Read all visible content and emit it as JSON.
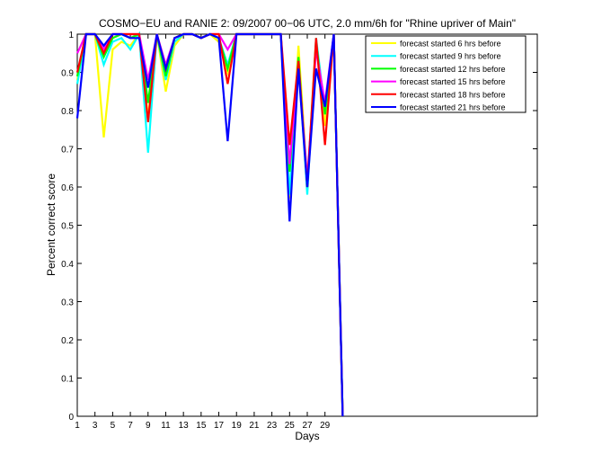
{
  "chart_data": {
    "type": "line",
    "title": "COSMO−EU and RANIE 2: 09/2007 00−06 UTC, 2.0 mm/6h for \"Rhine upriver of Main\"",
    "xlabel": "Days",
    "ylabel": "Percent correct score",
    "xlim": [
      1,
      53
    ],
    "ylim": [
      0,
      1
    ],
    "x_ticks": [
      1,
      3,
      5,
      7,
      9,
      11,
      13,
      15,
      17,
      19,
      21,
      23,
      25,
      27,
      29
    ],
    "y_ticks": [
      0,
      0.1,
      0.2,
      0.3,
      0.4,
      0.5,
      0.6,
      0.7,
      0.8,
      0.9,
      1
    ],
    "x_tick_labels": [
      "1",
      "3",
      "5",
      "7",
      "9",
      "11",
      "13",
      "15",
      "17",
      "19",
      "21",
      "23",
      "25",
      "27",
      "29"
    ],
    "y_tick_labels": [
      "0",
      "0.1",
      "0.2",
      "0.3",
      "0.4",
      "0.5",
      "0.6",
      "0.7",
      "0.8",
      "0.9",
      "1"
    ],
    "grid": false,
    "legend_position": "top-right",
    "x": [
      1,
      2,
      3,
      4,
      5,
      6,
      7,
      8,
      9,
      10,
      11,
      12,
      13,
      14,
      15,
      16,
      17,
      18,
      19,
      20,
      21,
      22,
      23,
      24,
      25,
      26,
      27,
      28,
      29,
      30,
      31
    ],
    "series": [
      {
        "name": "forecast started 6 hrs before",
        "color": "#ffff00",
        "values": [
          0.88,
          1,
          1,
          0.73,
          0.96,
          0.98,
          0.97,
          1,
          0.78,
          1,
          0.85,
          0.97,
          1,
          1,
          0.99,
          1,
          0.98,
          0.9,
          1,
          1,
          1,
          1,
          1,
          1,
          0.57,
          0.97,
          0.61,
          0.99,
          0.76,
          1,
          0
        ]
      },
      {
        "name": "forecast started 9 hrs before",
        "color": "#00ffff",
        "values": [
          0.87,
          1,
          1,
          0.92,
          0.98,
          0.99,
          0.96,
          1,
          0.69,
          1,
          0.88,
          0.98,
          1,
          1,
          0.99,
          1,
          0.99,
          0.92,
          1,
          1,
          1,
          1,
          1,
          1,
          0.58,
          0.93,
          0.58,
          0.99,
          0.8,
          1,
          0
        ]
      },
      {
        "name": "forecast started 12 hrs before",
        "color": "#00ff00",
        "values": [
          0.89,
          1,
          1,
          0.94,
          0.99,
          1,
          0.99,
          1,
          0.82,
          1,
          0.89,
          0.99,
          1,
          1,
          0.99,
          1,
          0.99,
          0.91,
          1,
          1,
          1,
          1,
          1,
          1,
          0.64,
          0.94,
          0.6,
          0.98,
          0.79,
          1,
          0
        ]
      },
      {
        "name": "forecast started 15 hrs before",
        "color": "#ff00ff",
        "values": [
          0.95,
          1,
          1,
          0.96,
          1,
          1,
          1,
          1,
          0.88,
          1,
          0.92,
          0.99,
          1,
          1,
          0.99,
          1,
          1,
          0.96,
          1,
          1,
          1,
          1,
          1,
          1,
          0.66,
          0.92,
          0.62,
          0.96,
          0.82,
          1,
          0
        ]
      },
      {
        "name": "forecast started 18 hrs before",
        "color": "#ff0000",
        "values": [
          0.9,
          1,
          1,
          0.95,
          1,
          1,
          1,
          1,
          0.77,
          1,
          0.91,
          0.99,
          1,
          1,
          0.99,
          1,
          1,
          0.87,
          1,
          1,
          1,
          1,
          1,
          1,
          0.71,
          0.93,
          0.6,
          0.99,
          0.71,
          1,
          0
        ]
      },
      {
        "name": "forecast started 21 hrs before",
        "color": "#0000ff",
        "values": [
          0.78,
          1,
          1,
          0.97,
          1,
          1,
          0.99,
          0.99,
          0.86,
          1,
          0.91,
          0.99,
          1,
          1,
          0.99,
          1,
          0.99,
          0.72,
          1,
          1,
          1,
          1,
          1,
          1,
          0.51,
          0.91,
          0.6,
          0.91,
          0.81,
          1,
          0
        ]
      }
    ]
  }
}
